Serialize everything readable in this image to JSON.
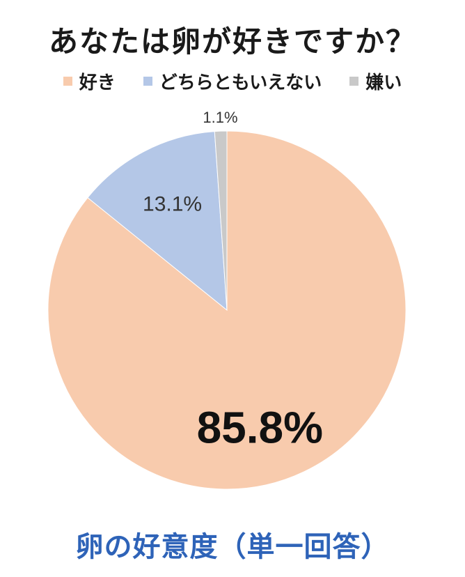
{
  "chart_data": {
    "type": "pie",
    "title": "あなたは卵が好きですか？",
    "subtitle": "卵の好意度（単一回答）",
    "categories": [
      "好き",
      "どちらともいえない",
      "嫌い"
    ],
    "values": [
      85.8,
      13.1,
      1.1
    ],
    "value_labels": [
      "85.8%",
      "13.1%",
      "1.1%"
    ],
    "colors": [
      "#F8CBAD",
      "#B4C7E7",
      "#C9C9C9"
    ],
    "legend_position": "top"
  }
}
